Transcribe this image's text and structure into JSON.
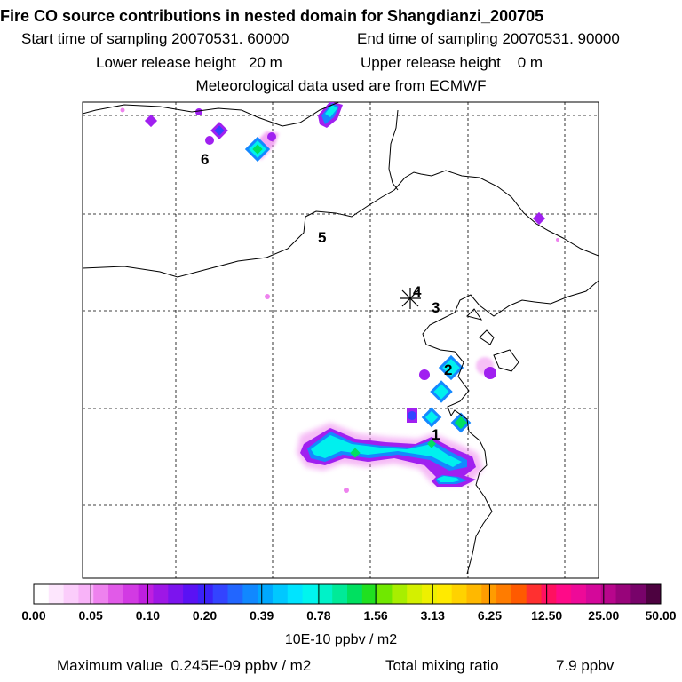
{
  "header": {
    "title": "Fire CO source contributions in nested domain for Shangdianzi_200705",
    "start_time": "Start time of sampling 20070531. 60000",
    "end_time": "End time of sampling 20070531. 90000",
    "lower_height": "Lower release height   20 m",
    "upper_height": "Upper release height    0 m",
    "met_data": "Meteorological data used are from ECMWF"
  },
  "chart_data": {
    "type": "heatmap",
    "title": "Fire CO source contributions in nested domain for Shangdianzi_200705",
    "colorbar": {
      "tick_labels": [
        "0.00",
        "0.05",
        "0.10",
        "0.20",
        "0.39",
        "0.78",
        "1.56",
        "3.13",
        "6.25",
        "12.50",
        "25.00",
        "50.00"
      ],
      "units": "10E-10 ppbv / m2",
      "colors": [
        "#ffffff",
        "#fde6fd",
        "#fbcdfb",
        "#f8b3f8",
        "#ee82ee",
        "#e15ae8",
        "#d23ae3",
        "#bf1fdf",
        "#9e17e6",
        "#7c14ee",
        "#5a12f4",
        "#3b22f8",
        "#3344ff",
        "#2266ff",
        "#1188ff",
        "#00a8ff",
        "#00c8ff",
        "#00e4ff",
        "#00f5ee",
        "#00f2c8",
        "#00ea98",
        "#00e060",
        "#20e020",
        "#70e800",
        "#a8ee00",
        "#d4f000",
        "#eef000",
        "#ffea00",
        "#ffd200",
        "#ffb800",
        "#ff9c00",
        "#ff7c00",
        "#ff5a00",
        "#ff3030",
        "#ff1060",
        "#ff0a88",
        "#ee0a98",
        "#d4089a",
        "#b8068c",
        "#98047a",
        "#78036a",
        "#4d0240"
      ]
    },
    "point_labels": [
      "1",
      "2",
      "3",
      "4",
      "5",
      "6"
    ],
    "plumes": [
      {
        "value": 0.5,
        "level": "cyan"
      },
      {
        "value": 0.9,
        "level": "green"
      },
      {
        "value": 0.3,
        "level": "blue"
      },
      {
        "value": 0.1,
        "level": "purple"
      }
    ],
    "maximum_value": "Maximum value  0.245E-09 ppbv / m2",
    "total_mixing_ratio_label": "Total mixing ratio",
    "total_mixing_ratio": "7.9 ppbv"
  },
  "colors": {
    "cyan": "#00f0ee",
    "green": "#00e060",
    "blue": "#1488ff",
    "purple": "#a020f0",
    "magenta": "#ee82ee"
  }
}
